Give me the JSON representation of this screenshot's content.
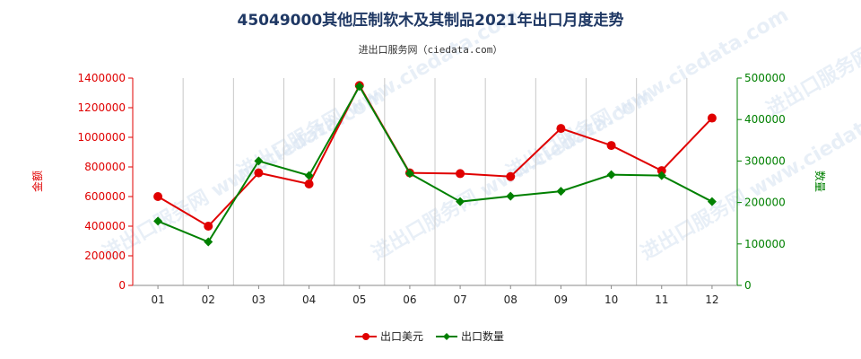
{
  "chart_data": {
    "type": "line",
    "title": "45049000其他压制软木及其制品2021年出口月度走势",
    "subtitle": "进出口服务网（ciedata.com）",
    "watermark": "进出口服务网 www.ciedata.com",
    "categories": [
      "01",
      "02",
      "03",
      "04",
      "05",
      "06",
      "07",
      "08",
      "09",
      "10",
      "11",
      "12"
    ],
    "y_left": {
      "label": "金额",
      "lim": [
        0,
        1400000
      ],
      "ticks": [
        0,
        200000,
        400000,
        600000,
        800000,
        1000000,
        1200000,
        1400000
      ],
      "color": "#e00000"
    },
    "y_right": {
      "label": "数量",
      "lim": [
        0,
        500000
      ],
      "ticks": [
        0,
        100000,
        200000,
        300000,
        400000,
        500000
      ],
      "color": "#008000"
    },
    "series": [
      {
        "name": "出口美元",
        "axis": "left",
        "color": "#e00000",
        "marker": "circle",
        "values": [
          600000,
          400000,
          760000,
          685000,
          1350000,
          760000,
          755000,
          735000,
          1060000,
          945000,
          775000,
          1130000
        ]
      },
      {
        "name": "出口数量",
        "axis": "right",
        "color": "#008000",
        "marker": "diamond",
        "values": [
          155000,
          105000,
          300000,
          265000,
          480000,
          270000,
          202000,
          215000,
          227000,
          267000,
          265000,
          202000
        ]
      }
    ],
    "grid": "vertical",
    "legend": "bottom-center"
  }
}
